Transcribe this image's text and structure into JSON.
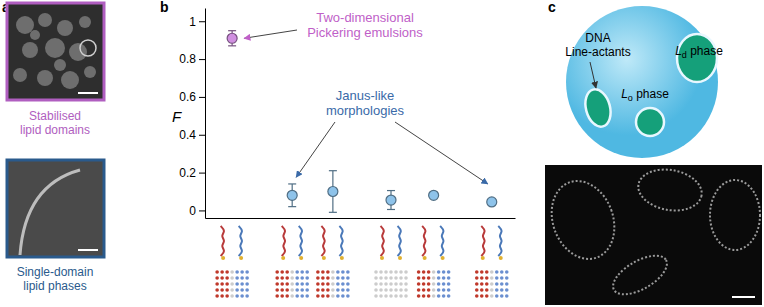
{
  "panels": [
    "a",
    "b",
    "c"
  ],
  "panel_a": {
    "top_caption": [
      "Stabilised",
      "lipid domains"
    ],
    "bottom_caption": [
      "Single-domain",
      "lipid phases"
    ]
  },
  "chart_data": {
    "type": "scatter",
    "marker": "circle",
    "ylabel": "F",
    "x": [
      0.7,
      2.25,
      3.3,
      4.8,
      5.9,
      7.4
    ],
    "values": [
      0.91,
      0.08,
      0.1,
      0.055,
      0.08,
      0.045
    ],
    "errors": [
      0.04,
      0.06,
      0.11,
      0.05,
      0.01,
      0.01
    ],
    "colors": [
      "#d08fe0",
      "#8ec3ea",
      "#8ec3ea",
      "#8ec3ea",
      "#8ec3ea",
      "#8ec3ea"
    ],
    "xlim": [
      0,
      8
    ],
    "ylim": [
      -0.04,
      1.07
    ],
    "yticks": [
      0,
      0.2,
      0.4,
      0.6,
      0.8,
      1
    ],
    "tick_labels": "y",
    "annotations": [
      {
        "text": [
          "Two-dimensional",
          "Pickering emulsions"
        ],
        "color": "#c05fc8",
        "targets": [
          0
        ]
      },
      {
        "text": [
          "Janus-like",
          "morphologies"
        ],
        "color": "#3a6aa8",
        "targets": [
          1,
          5
        ]
      }
    ]
  },
  "panel_c": {
    "line_actants": [
      "DNA",
      "Line-actants"
    ],
    "ld": {
      "main": "L",
      "sub": "d",
      "rest": "phase"
    },
    "lo": {
      "main": "L",
      "sub": "o",
      "rest": "phase"
    }
  }
}
